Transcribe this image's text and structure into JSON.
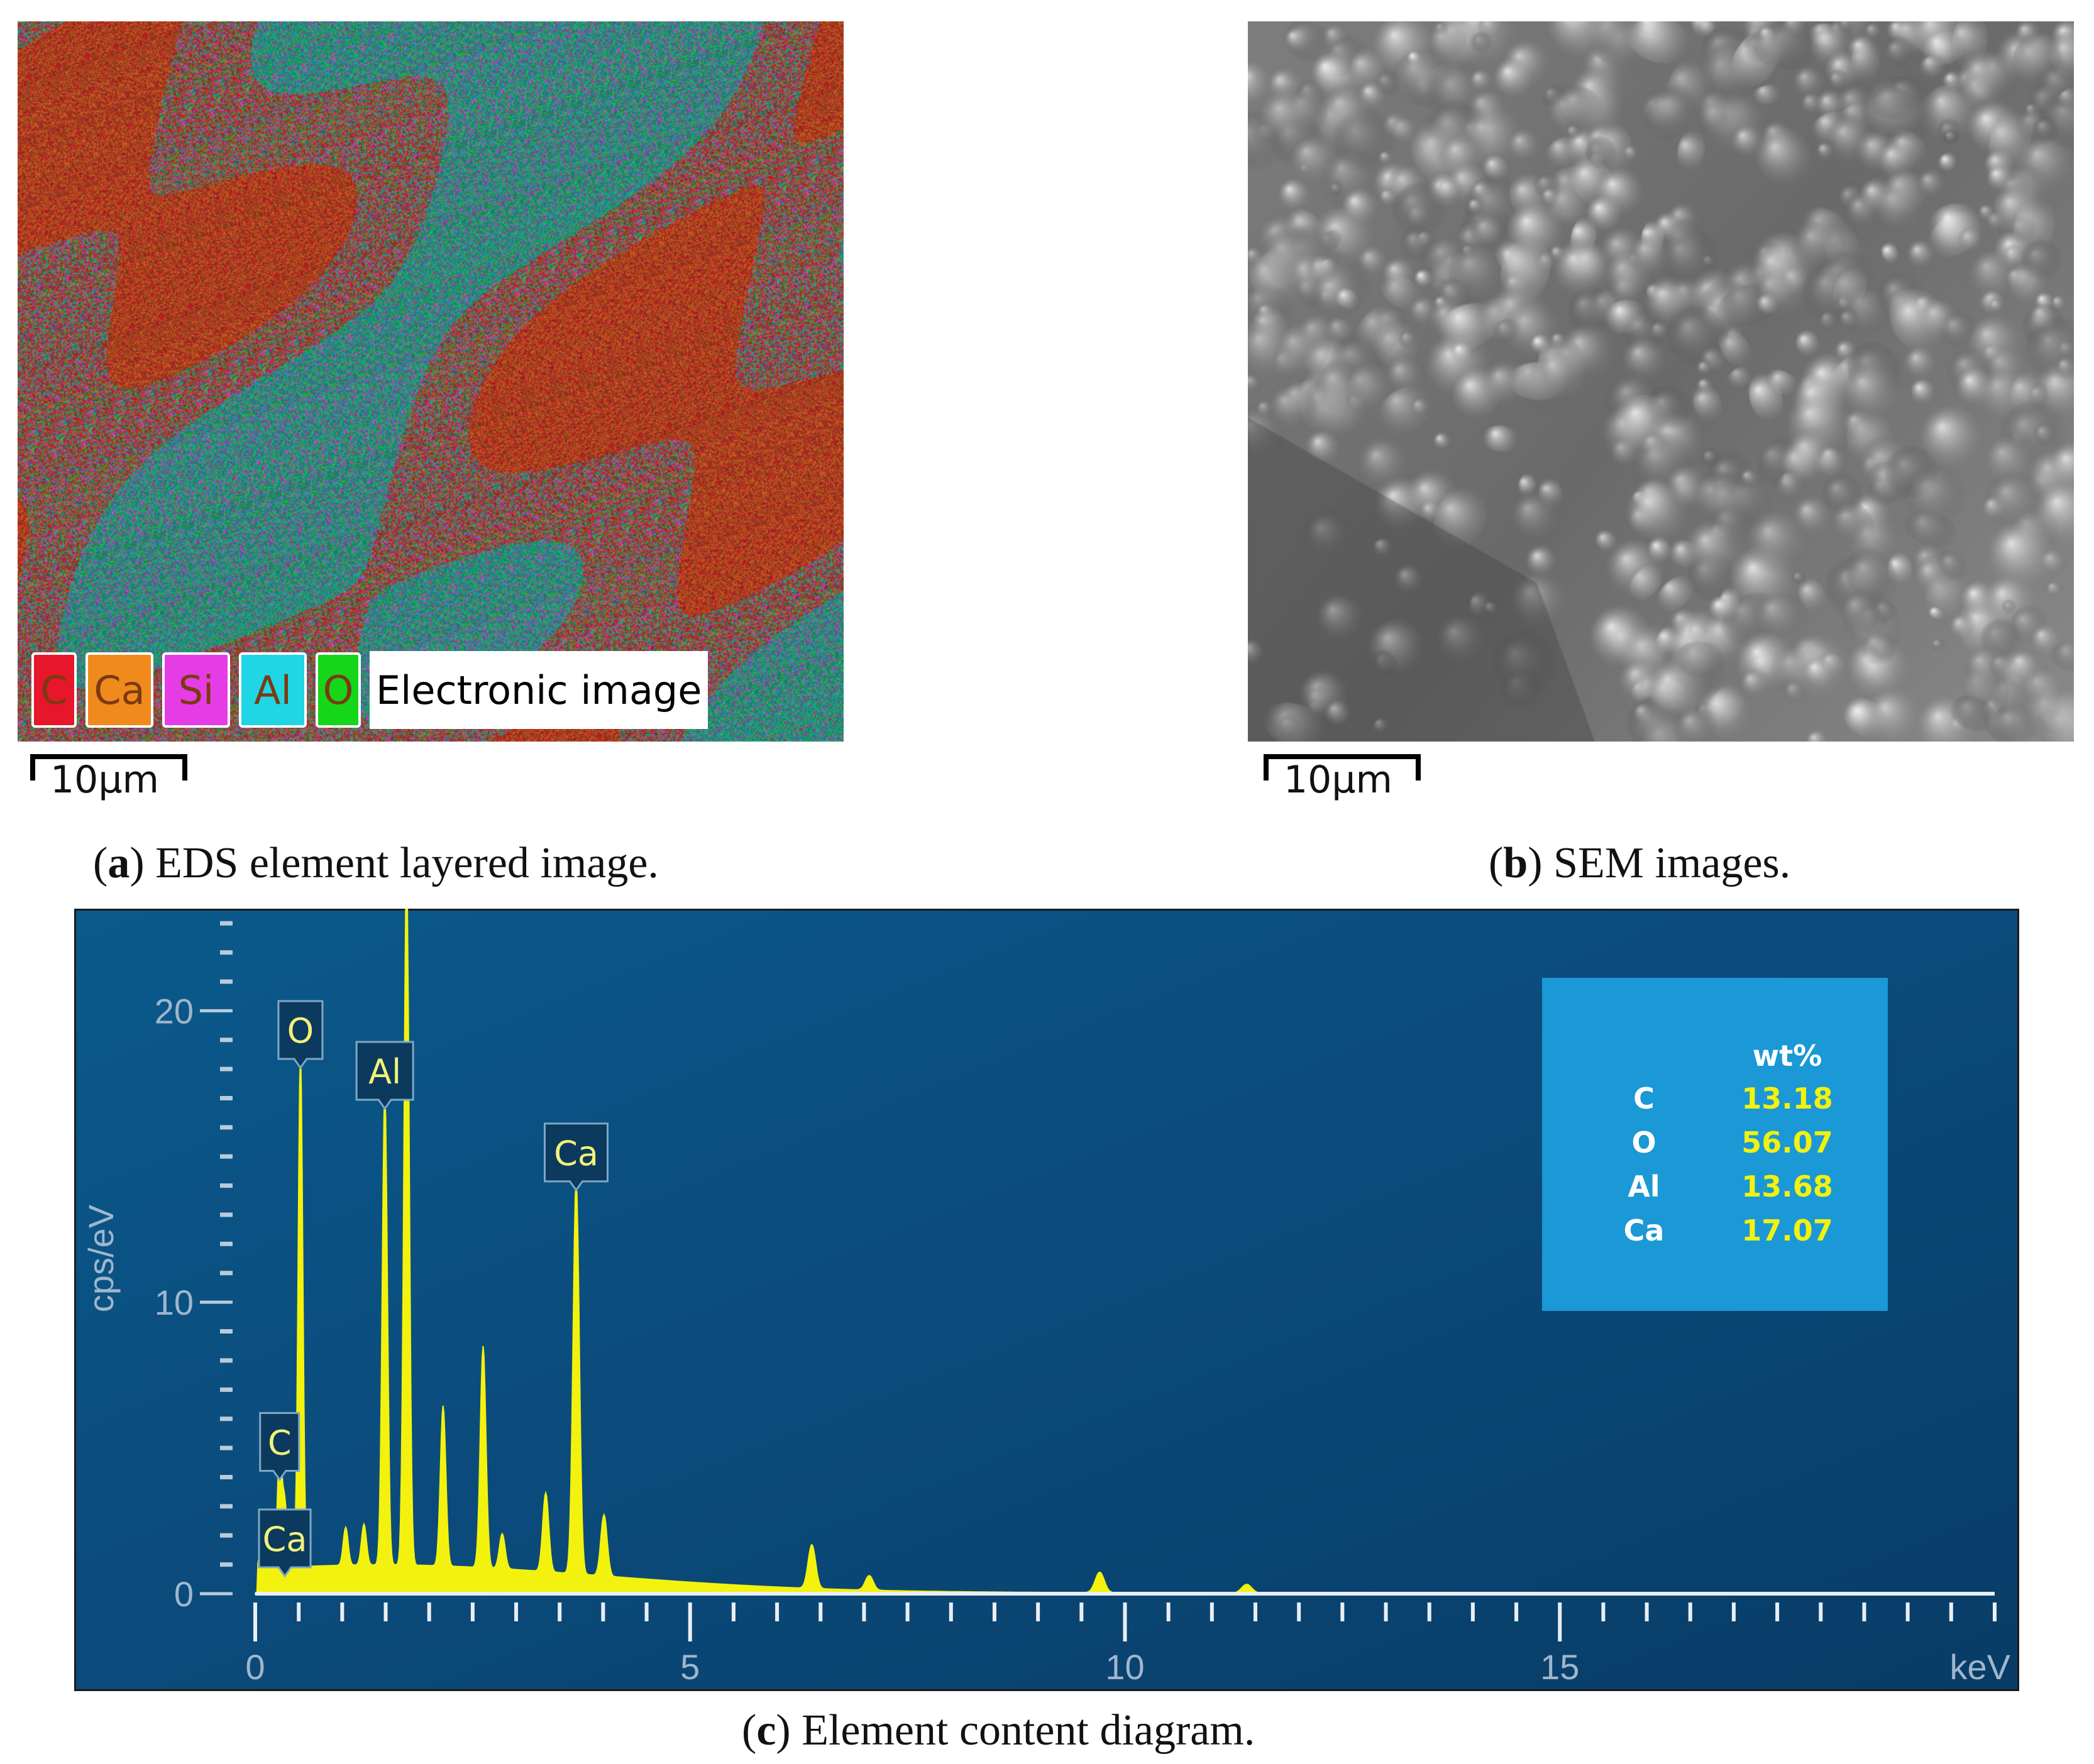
{
  "panel_a": {
    "legend": [
      {
        "label": "C",
        "color": "#e8162a"
      },
      {
        "label": "Ca",
        "color": "#f08a1c"
      },
      {
        "label": "Si",
        "color": "#e63ce6"
      },
      {
        "label": "Al",
        "color": "#20d6e4"
      },
      {
        "label": "O",
        "color": "#16d61a"
      }
    ],
    "legend_image_label": "Electronic image",
    "scale_label": "10μm",
    "caption_letter": "a",
    "caption_text": " EDS element layered image."
  },
  "panel_b": {
    "scale_label": "10μm",
    "caption_letter": "b",
    "caption_text": " SEM images."
  },
  "panel_c": {
    "caption_letter": "c",
    "caption_text": " Element content diagram."
  },
  "chart_data": {
    "type": "line",
    "title": "",
    "xlabel": "keV",
    "ylabel": "cps/eV",
    "xlim": [
      0,
      20
    ],
    "ylim": [
      0,
      23.5
    ],
    "x_ticks": [
      0,
      5,
      10,
      15
    ],
    "y_ticks": [
      0,
      10,
      20
    ],
    "grid": false,
    "background": "#0c4a7c",
    "line_color": "#f2f20e",
    "peaks": [
      {
        "x": 0.08,
        "y": 1.2
      },
      {
        "x": 0.28,
        "y": 4.0
      },
      {
        "x": 0.34,
        "y": 2.2
      },
      {
        "x": 0.52,
        "y": 17.7
      },
      {
        "x": 1.04,
        "y": 1.3
      },
      {
        "x": 1.25,
        "y": 1.4
      },
      {
        "x": 1.49,
        "y": 16.3
      },
      {
        "x": 1.74,
        "y": 24.0
      },
      {
        "x": 2.16,
        "y": 5.5
      },
      {
        "x": 2.62,
        "y": 7.6
      },
      {
        "x": 2.84,
        "y": 1.2
      },
      {
        "x": 3.34,
        "y": 2.7
      },
      {
        "x": 3.69,
        "y": 13.5
      },
      {
        "x": 4.01,
        "y": 2.1
      },
      {
        "x": 6.4,
        "y": 1.5
      },
      {
        "x": 7.06,
        "y": 0.5
      },
      {
        "x": 9.71,
        "y": 0.7
      },
      {
        "x": 11.4,
        "y": 0.3
      }
    ],
    "peak_labels": [
      {
        "label": "O",
        "x": 0.52,
        "y": 17.7
      },
      {
        "label": "Al",
        "x": 1.49,
        "y": 16.3
      },
      {
        "label": "Ca",
        "x": 3.69,
        "y": 13.5
      },
      {
        "label": "C",
        "x": 0.28,
        "y": 4.0
      },
      {
        "label": "Ca",
        "x": 0.34,
        "y": 2.2
      }
    ],
    "composition_table": {
      "header": "wt%",
      "rows": [
        {
          "element": "C",
          "value": "13.18"
        },
        {
          "element": "O",
          "value": "56.07"
        },
        {
          "element": "Al",
          "value": "13.68"
        },
        {
          "element": "Ca",
          "value": "17.07"
        }
      ]
    }
  }
}
